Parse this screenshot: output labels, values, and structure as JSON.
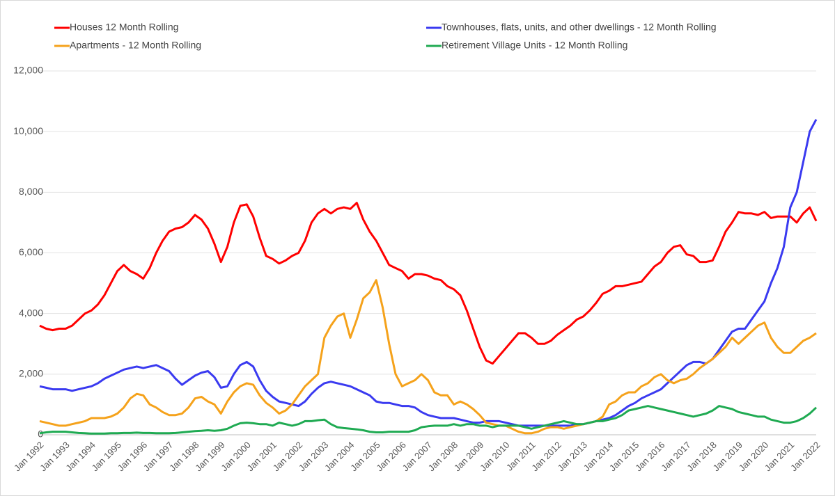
{
  "chart_data": {
    "type": "line",
    "categories": [
      "Jan 1992",
      null,
      null,
      null,
      "Jan 1993",
      null,
      null,
      null,
      "Jan 1994",
      null,
      null,
      null,
      "Jan 1995",
      null,
      null,
      null,
      "Jan 1996",
      null,
      null,
      null,
      "Jan 1997",
      null,
      null,
      null,
      "Jan 1998",
      null,
      null,
      null,
      "Jan 1999",
      null,
      null,
      null,
      "Jan 2000",
      null,
      null,
      null,
      "Jan 2001",
      null,
      null,
      null,
      "Jan 2002",
      null,
      null,
      null,
      "Jan 2003",
      null,
      null,
      null,
      "Jan 2004",
      null,
      null,
      null,
      "Jan 2005",
      null,
      null,
      null,
      "Jan 2006",
      null,
      null,
      null,
      "Jan 2007",
      null,
      null,
      null,
      "Jan 2008",
      null,
      null,
      null,
      "Jan 2009",
      null,
      null,
      null,
      "Jan 2010",
      null,
      null,
      null,
      "Jan 2011",
      null,
      null,
      null,
      "Jan 2012",
      null,
      null,
      null,
      "Jan 2013",
      null,
      null,
      null,
      "Jan 2014",
      null,
      null,
      null,
      "Jan 2015",
      null,
      null,
      null,
      "Jan 2016",
      null,
      null,
      null,
      "Jan 2017",
      null,
      null,
      null,
      "Jan 2018",
      null,
      null,
      null,
      "Jan 2019",
      null,
      null,
      null,
      "Jan 2020",
      null,
      null,
      null,
      "Jan 2021",
      null,
      null,
      null,
      "Jan 2022"
    ],
    "series": [
      {
        "name": "Houses 12 Month Rolling",
        "color": "#ff0000",
        "values": [
          3600,
          3500,
          3450,
          3500,
          3500,
          3600,
          3800,
          4000,
          4100,
          4300,
          4600,
          5000,
          5400,
          5600,
          5400,
          5300,
          5150,
          5500,
          6000,
          6400,
          6700,
          6800,
          6850,
          7000,
          7250,
          7100,
          6800,
          6300,
          5700,
          6200,
          7000,
          7550,
          7600,
          7200,
          6500,
          5900,
          5800,
          5650,
          5750,
          5900,
          6000,
          6400,
          7000,
          7300,
          7450,
          7300,
          7450,
          7500,
          7450,
          7650,
          7100,
          6700,
          6400,
          6000,
          5600,
          5500,
          5400,
          5150,
          5300,
          5300,
          5250,
          5150,
          5100,
          4900,
          4800,
          4600,
          4100,
          3500,
          2900,
          2450,
          2350,
          2600,
          2850,
          3100,
          3350,
          3350,
          3200,
          3000,
          3000,
          3100,
          3300,
          3450,
          3600,
          3800,
          3900,
          4100,
          4350,
          4650,
          4750,
          4900,
          4900,
          4950,
          5000,
          5050,
          5300,
          5550,
          5700,
          6000,
          6200,
          6250,
          5950,
          5900,
          5700,
          5700,
          5750,
          6200,
          6700,
          7000,
          7350,
          7300,
          7300,
          7250,
          7350,
          7150,
          7200,
          7200,
          7200,
          7000,
          7300,
          7500,
          7050
        ]
      },
      {
        "name": "Townhouses, flats, units, and other dwellings - 12 Month Rolling",
        "color": "#3a3af0",
        "values": [
          1600,
          1550,
          1500,
          1500,
          1500,
          1450,
          1500,
          1550,
          1600,
          1700,
          1850,
          1950,
          2050,
          2150,
          2200,
          2250,
          2200,
          2250,
          2300,
          2200,
          2100,
          1850,
          1650,
          1800,
          1950,
          2050,
          2100,
          1900,
          1550,
          1600,
          2000,
          2300,
          2400,
          2250,
          1800,
          1450,
          1250,
          1100,
          1050,
          1000,
          950,
          1100,
          1350,
          1550,
          1700,
          1750,
          1700,
          1650,
          1600,
          1500,
          1400,
          1300,
          1100,
          1050,
          1050,
          1000,
          950,
          950,
          900,
          750,
          650,
          600,
          550,
          550,
          550,
          500,
          450,
          400,
          400,
          450,
          450,
          450,
          400,
          350,
          300,
          300,
          300,
          300,
          300,
          300,
          300,
          300,
          300,
          350,
          350,
          400,
          450,
          500,
          550,
          650,
          800,
          950,
          1050,
          1200,
          1300,
          1400,
          1500,
          1700,
          1900,
          2100,
          2300,
          2400,
          2400,
          2350,
          2500,
          2800,
          3100,
          3400,
          3500,
          3500,
          3800,
          4100,
          4400,
          5000,
          5500,
          6200,
          7500,
          8000,
          9000,
          10000,
          10400
        ]
      },
      {
        "name": "Apartments - 12 Month Rolling",
        "color": "#f5a21b",
        "values": [
          450,
          400,
          350,
          300,
          300,
          350,
          400,
          450,
          550,
          550,
          550,
          600,
          700,
          900,
          1200,
          1350,
          1300,
          1000,
          900,
          750,
          650,
          650,
          700,
          900,
          1200,
          1250,
          1100,
          1000,
          700,
          1100,
          1400,
          1600,
          1700,
          1650,
          1300,
          1050,
          900,
          700,
          800,
          1000,
          1300,
          1600,
          1800,
          2000,
          3200,
          3600,
          3900,
          4000,
          3200,
          3800,
          4500,
          4700,
          5100,
          4200,
          3000,
          2000,
          1600,
          1700,
          1800,
          2000,
          1800,
          1400,
          1300,
          1300,
          1000,
          1100,
          1000,
          850,
          650,
          400,
          350,
          300,
          300,
          200,
          100,
          50,
          50,
          100,
          200,
          250,
          250,
          200,
          250,
          300,
          350,
          400,
          450,
          600,
          1000,
          1100,
          1300,
          1400,
          1400,
          1600,
          1700,
          1900,
          2000,
          1800,
          1700,
          1800,
          1850,
          2000,
          2200,
          2350,
          2500,
          2700,
          2900,
          3200,
          3000,
          3200,
          3400,
          3600,
          3700,
          3200,
          2900,
          2700,
          2700,
          2900,
          3100,
          3200,
          3350
        ]
      },
      {
        "name": "Retirement Village Units - 12 Month Rolling",
        "color": "#1faa52",
        "values": [
          50,
          80,
          100,
          100,
          100,
          80,
          60,
          50,
          40,
          40,
          40,
          50,
          50,
          60,
          60,
          70,
          60,
          60,
          50,
          50,
          50,
          60,
          80,
          100,
          120,
          130,
          150,
          130,
          150,
          200,
          300,
          380,
          400,
          380,
          350,
          350,
          300,
          400,
          350,
          300,
          350,
          450,
          450,
          480,
          500,
          350,
          250,
          220,
          200,
          180,
          150,
          100,
          80,
          80,
          100,
          100,
          100,
          100,
          150,
          250,
          280,
          300,
          300,
          300,
          350,
          300,
          350,
          350,
          300,
          300,
          250,
          300,
          300,
          300,
          300,
          250,
          200,
          250,
          300,
          350,
          400,
          450,
          400,
          350,
          350,
          400,
          450,
          450,
          500,
          550,
          650,
          800,
          850,
          900,
          950,
          900,
          850,
          800,
          750,
          700,
          650,
          600,
          650,
          700,
          800,
          950,
          900,
          850,
          750,
          700,
          650,
          600,
          600,
          500,
          450,
          400,
          400,
          450,
          550,
          700,
          900
        ]
      }
    ],
    "ylim": [
      0,
      12000
    ],
    "yticks": [
      0,
      {
        "value": 2000,
        "label": "2,000"
      },
      {
        "value": 4000,
        "label": "4,000"
      },
      {
        "value": 6000,
        "label": "6,000"
      },
      {
        "value": 8000,
        "label": "8,000"
      },
      {
        "value": 10000,
        "label": "10,000"
      },
      {
        "value": 12000,
        "label": "12,000"
      }
    ],
    "grid": true,
    "legend": "top"
  }
}
